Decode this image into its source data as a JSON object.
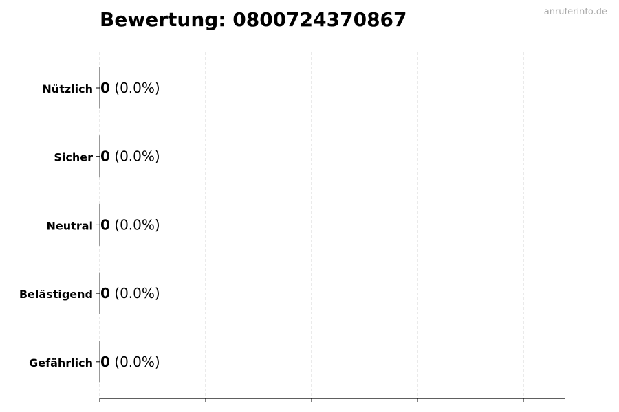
{
  "watermark": "anruferinfo.de",
  "chart_data": {
    "type": "bar",
    "orientation": "horizontal",
    "title": "Bewertung: 0800724370867",
    "xlabel": "",
    "ylabel": "",
    "categories": [
      "Nützlich",
      "Sicher",
      "Neutral",
      "Belästigend",
      "Gefährlich"
    ],
    "values": [
      0,
      0,
      0,
      0,
      0
    ],
    "percent_labels": [
      "(0.0%)",
      "(0.0%)",
      "(0.0%)",
      "(0.0%)",
      "(0.0%)"
    ],
    "x_tick_labels_shown": false,
    "grid": "x dashed",
    "colors": {
      "bar_edge": "#333333",
      "grid": "#cccccc",
      "watermark": "#aaaaaa"
    }
  }
}
